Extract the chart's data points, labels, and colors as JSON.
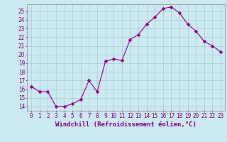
{
  "x": [
    0,
    1,
    2,
    3,
    4,
    5,
    6,
    7,
    8,
    9,
    10,
    11,
    12,
    13,
    14,
    15,
    16,
    17,
    18,
    19,
    20,
    21,
    22,
    23
  ],
  "y": [
    16.3,
    15.7,
    15.7,
    14.0,
    14.0,
    14.3,
    14.8,
    17.0,
    15.7,
    19.2,
    19.5,
    19.3,
    21.7,
    22.3,
    23.5,
    24.3,
    25.3,
    25.5,
    24.8,
    23.5,
    22.7,
    21.5,
    21.0,
    20.3
  ],
  "line_color": "#8B008B",
  "marker": "D",
  "marker_size": 2.5,
  "bg_color": "#cce8f0",
  "grid_color": "#aacccc",
  "xlabel": "Windchill (Refroidissement éolien,°C)",
  "ylabel": "",
  "xlim": [
    -0.5,
    23.5
  ],
  "ylim": [
    13.5,
    25.8
  ],
  "yticks": [
    14,
    15,
    16,
    17,
    18,
    19,
    20,
    21,
    22,
    23,
    24,
    25
  ],
  "xticks": [
    0,
    1,
    2,
    3,
    4,
    5,
    6,
    7,
    8,
    9,
    10,
    11,
    12,
    13,
    14,
    15,
    16,
    17,
    18,
    19,
    20,
    21,
    22,
    23
  ],
  "xlabel_fontsize": 6.5,
  "tick_fontsize": 5.5,
  "tick_color": "#800080",
  "spine_color": "#888888"
}
